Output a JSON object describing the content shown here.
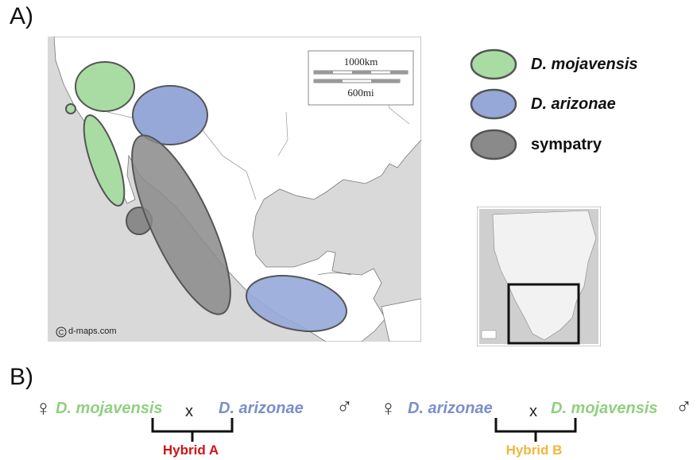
{
  "panel_a": {
    "label": "A)",
    "map": {
      "scale_km": "1000km",
      "scale_mi": "600mi",
      "credit": "d-maps.com"
    },
    "legend": [
      {
        "label": "D. mojavensis",
        "color": "#a8dca3",
        "italic": true
      },
      {
        "label": "D. arizonae",
        "color": "#95a8d8",
        "italic": true
      },
      {
        "label": "sympatry",
        "color": "#8a8a8a",
        "italic": false
      }
    ]
  },
  "panel_b": {
    "label": "B)",
    "cross_a": {
      "female_symbol": "♀",
      "female": "D. mojavensis",
      "times": "x",
      "male": "D. arizonae",
      "male_symbol": "♂",
      "hybrid": "Hybrid A"
    },
    "cross_b": {
      "female_symbol": "♀",
      "female": "D. arizonae",
      "times": "x",
      "male": "D. mojavensis",
      "male_symbol": "♂",
      "hybrid": "Hybrid B"
    },
    "colors": {
      "mojavensis": "#8fd07f",
      "arizonae": "#7a8fcc",
      "hybrid_a": "#d01515",
      "hybrid_b": "#f0b73a"
    }
  }
}
